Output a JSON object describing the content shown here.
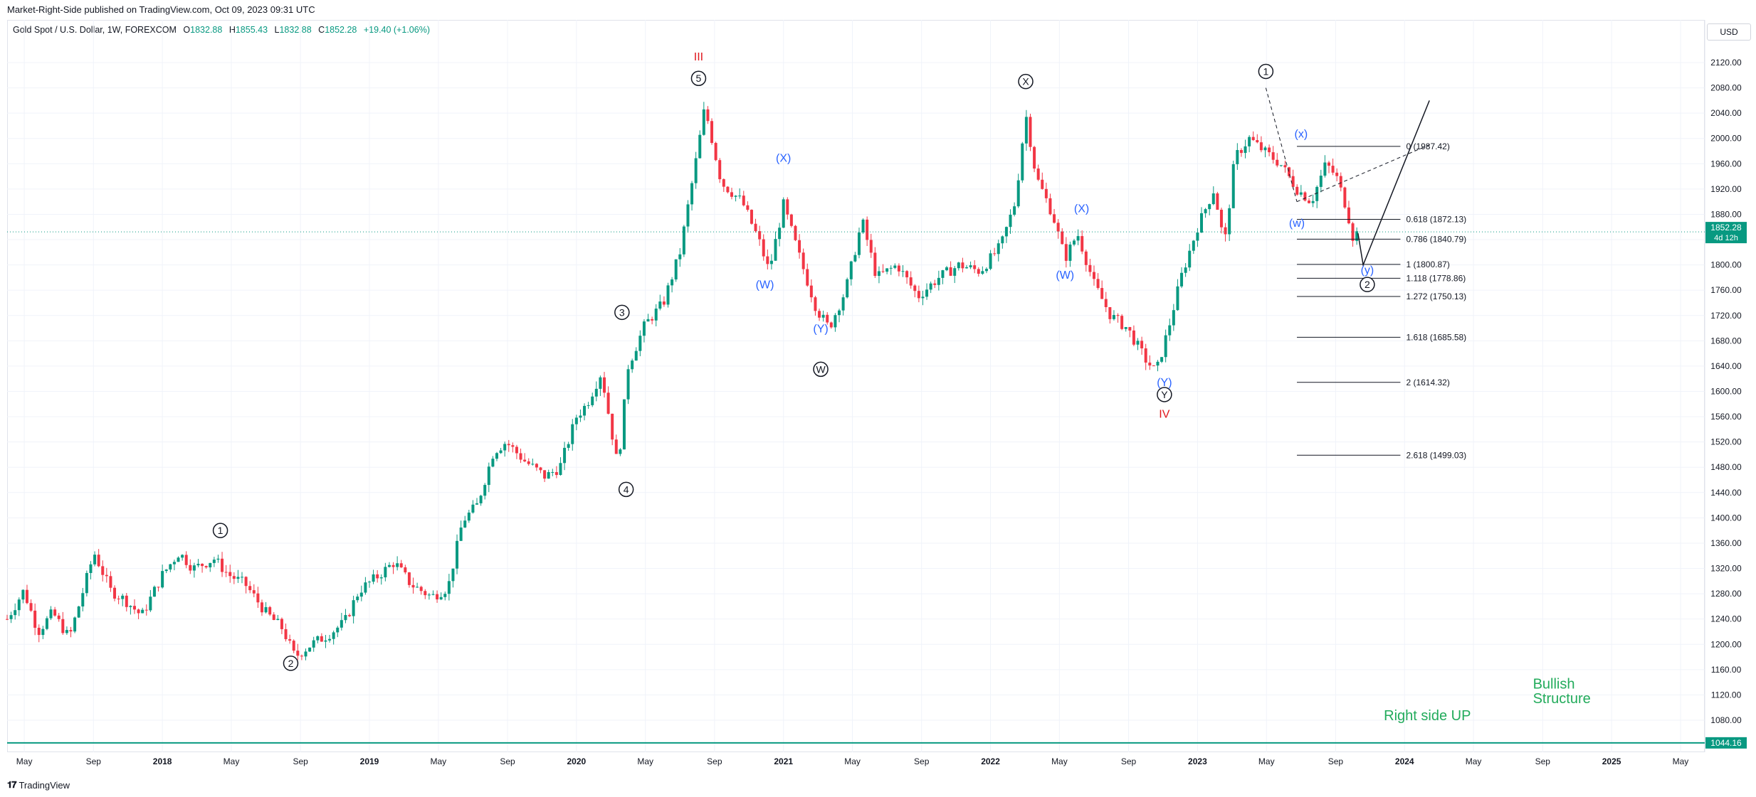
{
  "publisher": "Market-Right-Side published on TradingView.com, Oct 09, 2023 09:31 UTC",
  "symbol": {
    "name": "Gold Spot / U.S. Dollar, 1W, FOREXCOM",
    "open_label": "O",
    "open": "1832.88",
    "high_label": "H",
    "high": "1855.43",
    "low_label": "L",
    "low": "1832.88",
    "close_label": "C",
    "close": "1852.28",
    "change": "+19.40 (+1.06%)"
  },
  "currency": "USD",
  "footer": {
    "brand": "TradingView"
  },
  "colors": {
    "up": "#089981",
    "down": "#f23645",
    "wave_black": "#131722",
    "wave_blue": "#2962ff",
    "wave_red": "#e0161c",
    "green_text": "#22ab5b",
    "grid": "#f0f3fa"
  },
  "chart_data": {
    "type": "candlestick",
    "title": "Gold Spot / U.S. Dollar, 1W, FOREXCOM",
    "ylim": [
      1040,
      2150
    ],
    "y_ticks": [
      1080,
      1120,
      1160,
      1200,
      1240,
      1280,
      1320,
      1360,
      1400,
      1440,
      1480,
      1520,
      1560,
      1600,
      1640,
      1680,
      1720,
      1760,
      1800,
      1840,
      1880,
      1920,
      1960,
      2000,
      2040,
      2080,
      2120
    ],
    "x_range": [
      2017.25,
      2025.45
    ],
    "x_ticks": [
      {
        "t": 2017.333,
        "label": "May"
      },
      {
        "t": 2017.667,
        "label": "Sep"
      },
      {
        "t": 2018.0,
        "label": "2018",
        "bold": true
      },
      {
        "t": 2018.333,
        "label": "May"
      },
      {
        "t": 2018.667,
        "label": "Sep"
      },
      {
        "t": 2019.0,
        "label": "2019",
        "bold": true
      },
      {
        "t": 2019.333,
        "label": "May"
      },
      {
        "t": 2019.667,
        "label": "Sep"
      },
      {
        "t": 2020.0,
        "label": "2020",
        "bold": true
      },
      {
        "t": 2020.333,
        "label": "May"
      },
      {
        "t": 2020.667,
        "label": "Sep"
      },
      {
        "t": 2021.0,
        "label": "2021",
        "bold": true
      },
      {
        "t": 2021.333,
        "label": "May"
      },
      {
        "t": 2021.667,
        "label": "Sep"
      },
      {
        "t": 2022.0,
        "label": "2022",
        "bold": true
      },
      {
        "t": 2022.333,
        "label": "May"
      },
      {
        "t": 2022.667,
        "label": "Sep"
      },
      {
        "t": 2023.0,
        "label": "2023",
        "bold": true
      },
      {
        "t": 2023.333,
        "label": "May"
      },
      {
        "t": 2023.667,
        "label": "Sep"
      },
      {
        "t": 2024.0,
        "label": "2024",
        "bold": true
      },
      {
        "t": 2024.333,
        "label": "May"
      },
      {
        "t": 2024.667,
        "label": "Sep"
      },
      {
        "t": 2025.0,
        "label": "2025",
        "bold": true
      },
      {
        "t": 2025.333,
        "label": "May"
      }
    ],
    "last_price": {
      "value": 1852.28,
      "label": "1852.28",
      "countdown": "4d 12h"
    },
    "support_line": {
      "value": 1044.16,
      "label": "1044.16"
    },
    "price_path": [
      [
        2017.25,
        1240
      ],
      [
        2017.33,
        1285
      ],
      [
        2017.4,
        1220
      ],
      [
        2017.47,
        1250
      ],
      [
        2017.55,
        1210
      ],
      [
        2017.6,
        1265
      ],
      [
        2017.67,
        1345
      ],
      [
        2017.75,
        1285
      ],
      [
        2017.82,
        1270
      ],
      [
        2017.9,
        1245
      ],
      [
        2018.0,
        1310
      ],
      [
        2018.08,
        1345
      ],
      [
        2018.15,
        1320
      ],
      [
        2018.25,
        1335
      ],
      [
        2018.32,
        1310
      ],
      [
        2018.4,
        1295
      ],
      [
        2018.5,
        1250
      ],
      [
        2018.58,
        1225
      ],
      [
        2018.64,
        1180
      ],
      [
        2018.72,
        1200
      ],
      [
        2018.8,
        1215
      ],
      [
        2018.88,
        1235
      ],
      [
        2018.95,
        1285
      ],
      [
        2019.03,
        1305
      ],
      [
        2019.12,
        1330
      ],
      [
        2019.2,
        1295
      ],
      [
        2019.3,
        1275
      ],
      [
        2019.38,
        1290
      ],
      [
        2019.45,
        1395
      ],
      [
        2019.52,
        1420
      ],
      [
        2019.6,
        1505
      ],
      [
        2019.66,
        1520
      ],
      [
        2019.75,
        1490
      ],
      [
        2019.85,
        1465
      ],
      [
        2019.92,
        1480
      ],
      [
        2020.0,
        1560
      ],
      [
        2020.05,
        1580
      ],
      [
        2020.12,
        1630
      ],
      [
        2020.2,
        1480
      ],
      [
        2020.25,
        1640
      ],
      [
        2020.33,
        1705
      ],
      [
        2020.42,
        1740
      ],
      [
        2020.5,
        1820
      ],
      [
        2020.58,
        1970
      ],
      [
        2020.62,
        2050
      ],
      [
        2020.7,
        1930
      ],
      [
        2020.8,
        1900
      ],
      [
        2020.88,
        1840
      ],
      [
        2020.93,
        1790
      ],
      [
        2021.0,
        1895
      ],
      [
        2021.08,
        1810
      ],
      [
        2021.16,
        1730
      ],
      [
        2021.22,
        1700
      ],
      [
        2021.3,
        1760
      ],
      [
        2021.38,
        1870
      ],
      [
        2021.45,
        1780
      ],
      [
        2021.55,
        1800
      ],
      [
        2021.65,
        1750
      ],
      [
        2021.75,
        1780
      ],
      [
        2021.85,
        1800
      ],
      [
        2021.95,
        1790
      ],
      [
        2022.05,
        1830
      ],
      [
        2022.12,
        1900
      ],
      [
        2022.17,
        2040
      ],
      [
        2022.22,
        1940
      ],
      [
        2022.3,
        1880
      ],
      [
        2022.36,
        1810
      ],
      [
        2022.42,
        1850
      ],
      [
        2022.5,
        1770
      ],
      [
        2022.58,
        1720
      ],
      [
        2022.66,
        1700
      ],
      [
        2022.75,
        1650
      ],
      [
        2022.8,
        1630
      ],
      [
        2022.86,
        1700
      ],
      [
        2022.92,
        1780
      ],
      [
        2023.0,
        1860
      ],
      [
        2023.08,
        1920
      ],
      [
        2023.13,
        1830
      ],
      [
        2023.18,
        1970
      ],
      [
        2023.25,
        2000
      ],
      [
        2023.32,
        1980
      ],
      [
        2023.4,
        1960
      ],
      [
        2023.48,
        1920
      ],
      [
        2023.55,
        1900
      ],
      [
        2023.62,
        1960
      ],
      [
        2023.67,
        1940
      ],
      [
        2023.72,
        1890
      ],
      [
        2023.76,
        1830
      ],
      [
        2023.77,
        1852
      ]
    ],
    "wave_labels": [
      {
        "text": "1",
        "t": 2018.28,
        "p": 1380,
        "style": "circle",
        "color": "wave_black"
      },
      {
        "text": "2",
        "t": 2018.62,
        "p": 1170,
        "style": "circle",
        "color": "wave_black"
      },
      {
        "text": "3",
        "t": 2020.22,
        "p": 1725,
        "style": "circle",
        "color": "wave_black"
      },
      {
        "text": "4",
        "t": 2020.24,
        "p": 1445,
        "style": "circle",
        "color": "wave_black"
      },
      {
        "text": "5",
        "t": 2020.59,
        "p": 2095,
        "style": "circle",
        "color": "wave_black"
      },
      {
        "text": "III",
        "t": 2020.59,
        "p": 2130,
        "style": "plain",
        "color": "wave_red"
      },
      {
        "text": "X",
        "t": 2022.17,
        "p": 2090,
        "style": "circle",
        "color": "wave_black"
      },
      {
        "text": "W",
        "t": 2021.18,
        "p": 1635,
        "style": "circle",
        "color": "wave_black"
      },
      {
        "text": "Y",
        "t": 2022.84,
        "p": 1595,
        "style": "circle",
        "color": "wave_black"
      },
      {
        "text": "IV",
        "t": 2022.84,
        "p": 1565,
        "style": "plain",
        "color": "wave_red"
      },
      {
        "text": "1",
        "t": 2023.33,
        "p": 2106,
        "style": "circle",
        "color": "wave_black"
      },
      {
        "text": "2",
        "t": 2023.82,
        "p": 1769,
        "style": "circle",
        "color": "wave_black"
      },
      {
        "text": "(X)",
        "t": 2021.0,
        "p": 1970,
        "style": "plain",
        "color": "wave_blue"
      },
      {
        "text": "(W)",
        "t": 2020.91,
        "p": 1770,
        "style": "plain",
        "color": "wave_blue"
      },
      {
        "text": "(Y)",
        "t": 2021.18,
        "p": 1700,
        "style": "plain",
        "color": "wave_blue"
      },
      {
        "text": "(X)",
        "t": 2022.44,
        "p": 1890,
        "style": "plain",
        "color": "wave_blue"
      },
      {
        "text": "(W)",
        "t": 2022.36,
        "p": 1785,
        "style": "plain",
        "color": "wave_blue"
      },
      {
        "text": "(Y)",
        "t": 2022.84,
        "p": 1615,
        "style": "plain",
        "color": "wave_blue"
      },
      {
        "text": "(x)",
        "t": 2023.5,
        "p": 2008,
        "style": "plain",
        "color": "wave_blue"
      },
      {
        "text": "(w)",
        "t": 2023.48,
        "p": 1867,
        "style": "plain",
        "color": "wave_blue"
      },
      {
        "text": "(y)",
        "t": 2023.82,
        "p": 1793,
        "style": "plain",
        "color": "wave_blue"
      }
    ],
    "fib_levels": [
      {
        "ratio": "0",
        "value": 1987.42,
        "label": "0 (1987.42)"
      },
      {
        "ratio": "0.618",
        "value": 1872.13,
        "label": "0.618 (1872.13)"
      },
      {
        "ratio": "0.786",
        "value": 1840.79,
        "label": "0.786 (1840.79)"
      },
      {
        "ratio": "1",
        "value": 1800.87,
        "label": "1 (1800.87)"
      },
      {
        "ratio": "1.118",
        "value": 1778.86,
        "label": "1.118 (1778.86)"
      },
      {
        "ratio": "1.272",
        "value": 1750.13,
        "label": "1.272 (1750.13)"
      },
      {
        "ratio": "1.618",
        "value": 1685.58,
        "label": "1.618 (1685.58)"
      },
      {
        "ratio": "2",
        "value": 1614.32,
        "label": "2 (1614.32)"
      },
      {
        "ratio": "2.618",
        "value": 1499.03,
        "label": "2.618 (1499.03)"
      }
    ],
    "fib_span": [
      2023.48,
      2023.98
    ],
    "projection": [
      [
        2023.8,
        1800
      ],
      [
        2024.12,
        2060
      ]
    ],
    "triangle_lines": [
      [
        [
          2023.33,
          2080
        ],
        [
          2023.48,
          1900
        ]
      ],
      [
        [
          2023.48,
          1900
        ],
        [
          2024.12,
          1990
        ]
      ]
    ],
    "annotations": [
      {
        "text": "Right side UP",
        "t": 2023.9,
        "p": 1080,
        "color": "green_text",
        "size": 20
      },
      {
        "text": "Bullish",
        "t": 2024.62,
        "p": 1130,
        "color": "green_text",
        "size": 20
      },
      {
        "text": "Structure",
        "t": 2024.62,
        "p": 1107,
        "color": "green_text",
        "size": 20
      }
    ]
  }
}
